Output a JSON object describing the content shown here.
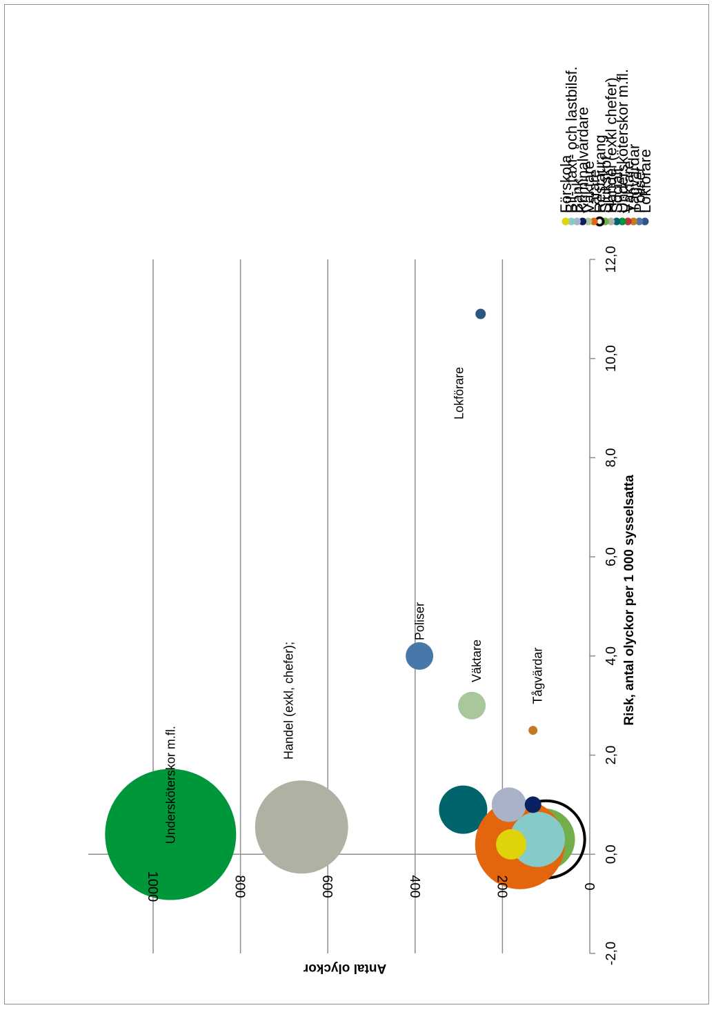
{
  "chart_data": {
    "type": "scatter",
    "subtype": "bubble",
    "xlabel": "Risk, antal olyckor per 1 000 sysselsatta",
    "ylabel": "Antal olyckor",
    "xlim": [
      -2.0,
      12.0
    ],
    "ylim": [
      0,
      1140
    ],
    "x_ticks": [
      "-2,0",
      "0,0",
      "2,0",
      "4,0",
      "6,0",
      "8,0",
      "10,0",
      "12,0"
    ],
    "y_ticks": [
      "0",
      "200",
      "400",
      "600",
      "800",
      "1000"
    ],
    "grid": "horizontal",
    "legend_position": "right",
    "series": [
      {
        "name": "Lokförare",
        "x": 10.9,
        "y": 250,
        "size": 15,
        "color": "#2e5682",
        "hollow": false
      },
      {
        "name": "Poliser",
        "x": 4.0,
        "y": 390,
        "size": 40,
        "color": "#4877a9",
        "hollow": false
      },
      {
        "name": "Tågvärdar",
        "x": 2.5,
        "y": 130,
        "size": 13,
        "color": "#c47a22",
        "hollow": false
      },
      {
        "name": "Väktare",
        "x": 0,
        "y": 0,
        "size": 0,
        "color": "#c0343c",
        "hollow": false
      },
      {
        "name": "Undersköterskor m.fl.",
        "x": 0.4,
        "y": 960,
        "size": 190,
        "color": "#00963a",
        "hollow": false
      },
      {
        "name": "Socialt",
        "x": 0.9,
        "y": 290,
        "size": 70,
        "color": "#00646c",
        "hollow": false
      },
      {
        "name": "Handel (exkl chefer)",
        "x": 0.55,
        "y": 660,
        "size": 135,
        "color": "#b0b0a3",
        "hollow": false
      },
      {
        "name": "Sjukskot.",
        "x": 0.3,
        "y": 105,
        "size": 90,
        "color": "#72ae4a",
        "hollow": false
      },
      {
        "name": "Restaurang",
        "x": 0.3,
        "y": 100,
        "size": 112,
        "color": "#000000",
        "hollow": true
      },
      {
        "name": "Lärare",
        "x": 0.2,
        "y": 160,
        "size": 130,
        "color": "#e3660f",
        "hollow": false
      },
      {
        "name": "Väktare",
        "x": 3.0,
        "y": 270,
        "size": 40,
        "color": "#a9c79a",
        "hollow": false
      },
      {
        "name": "Kriminalvårdare",
        "x": 1.0,
        "y": 130,
        "size": 24,
        "color": "#0b2060",
        "hollow": false
      },
      {
        "name": "Bank",
        "x": 1.0,
        "y": 185,
        "size": 50,
        "color": "#a9b2c7",
        "hollow": false
      },
      {
        "name": "Bil-, taxi- och lastbilsf.",
        "x": 0.3,
        "y": 120,
        "size": 80,
        "color": "#86cbc8",
        "hollow": false
      },
      {
        "name": "Förskola",
        "x": 0.2,
        "y": 180,
        "size": 44,
        "color": "#dfd309",
        "hollow": false
      }
    ],
    "annotations": [
      {
        "text": "Undersköterskor m.fl.",
        "x": 1.4,
        "y": 950
      },
      {
        "text": "Handel (exkl, chefer);",
        "x": 3.1,
        "y": 680
      },
      {
        "text": "Poliser",
        "x": 4.7,
        "y": 380
      },
      {
        "text": "Väktare",
        "x": 3.9,
        "y": 250
      },
      {
        "text": "Tågvärdar",
        "x": 3.6,
        "y": 110
      },
      {
        "text": "Lokförare",
        "x": 9.3,
        "y": 290
      }
    ]
  }
}
